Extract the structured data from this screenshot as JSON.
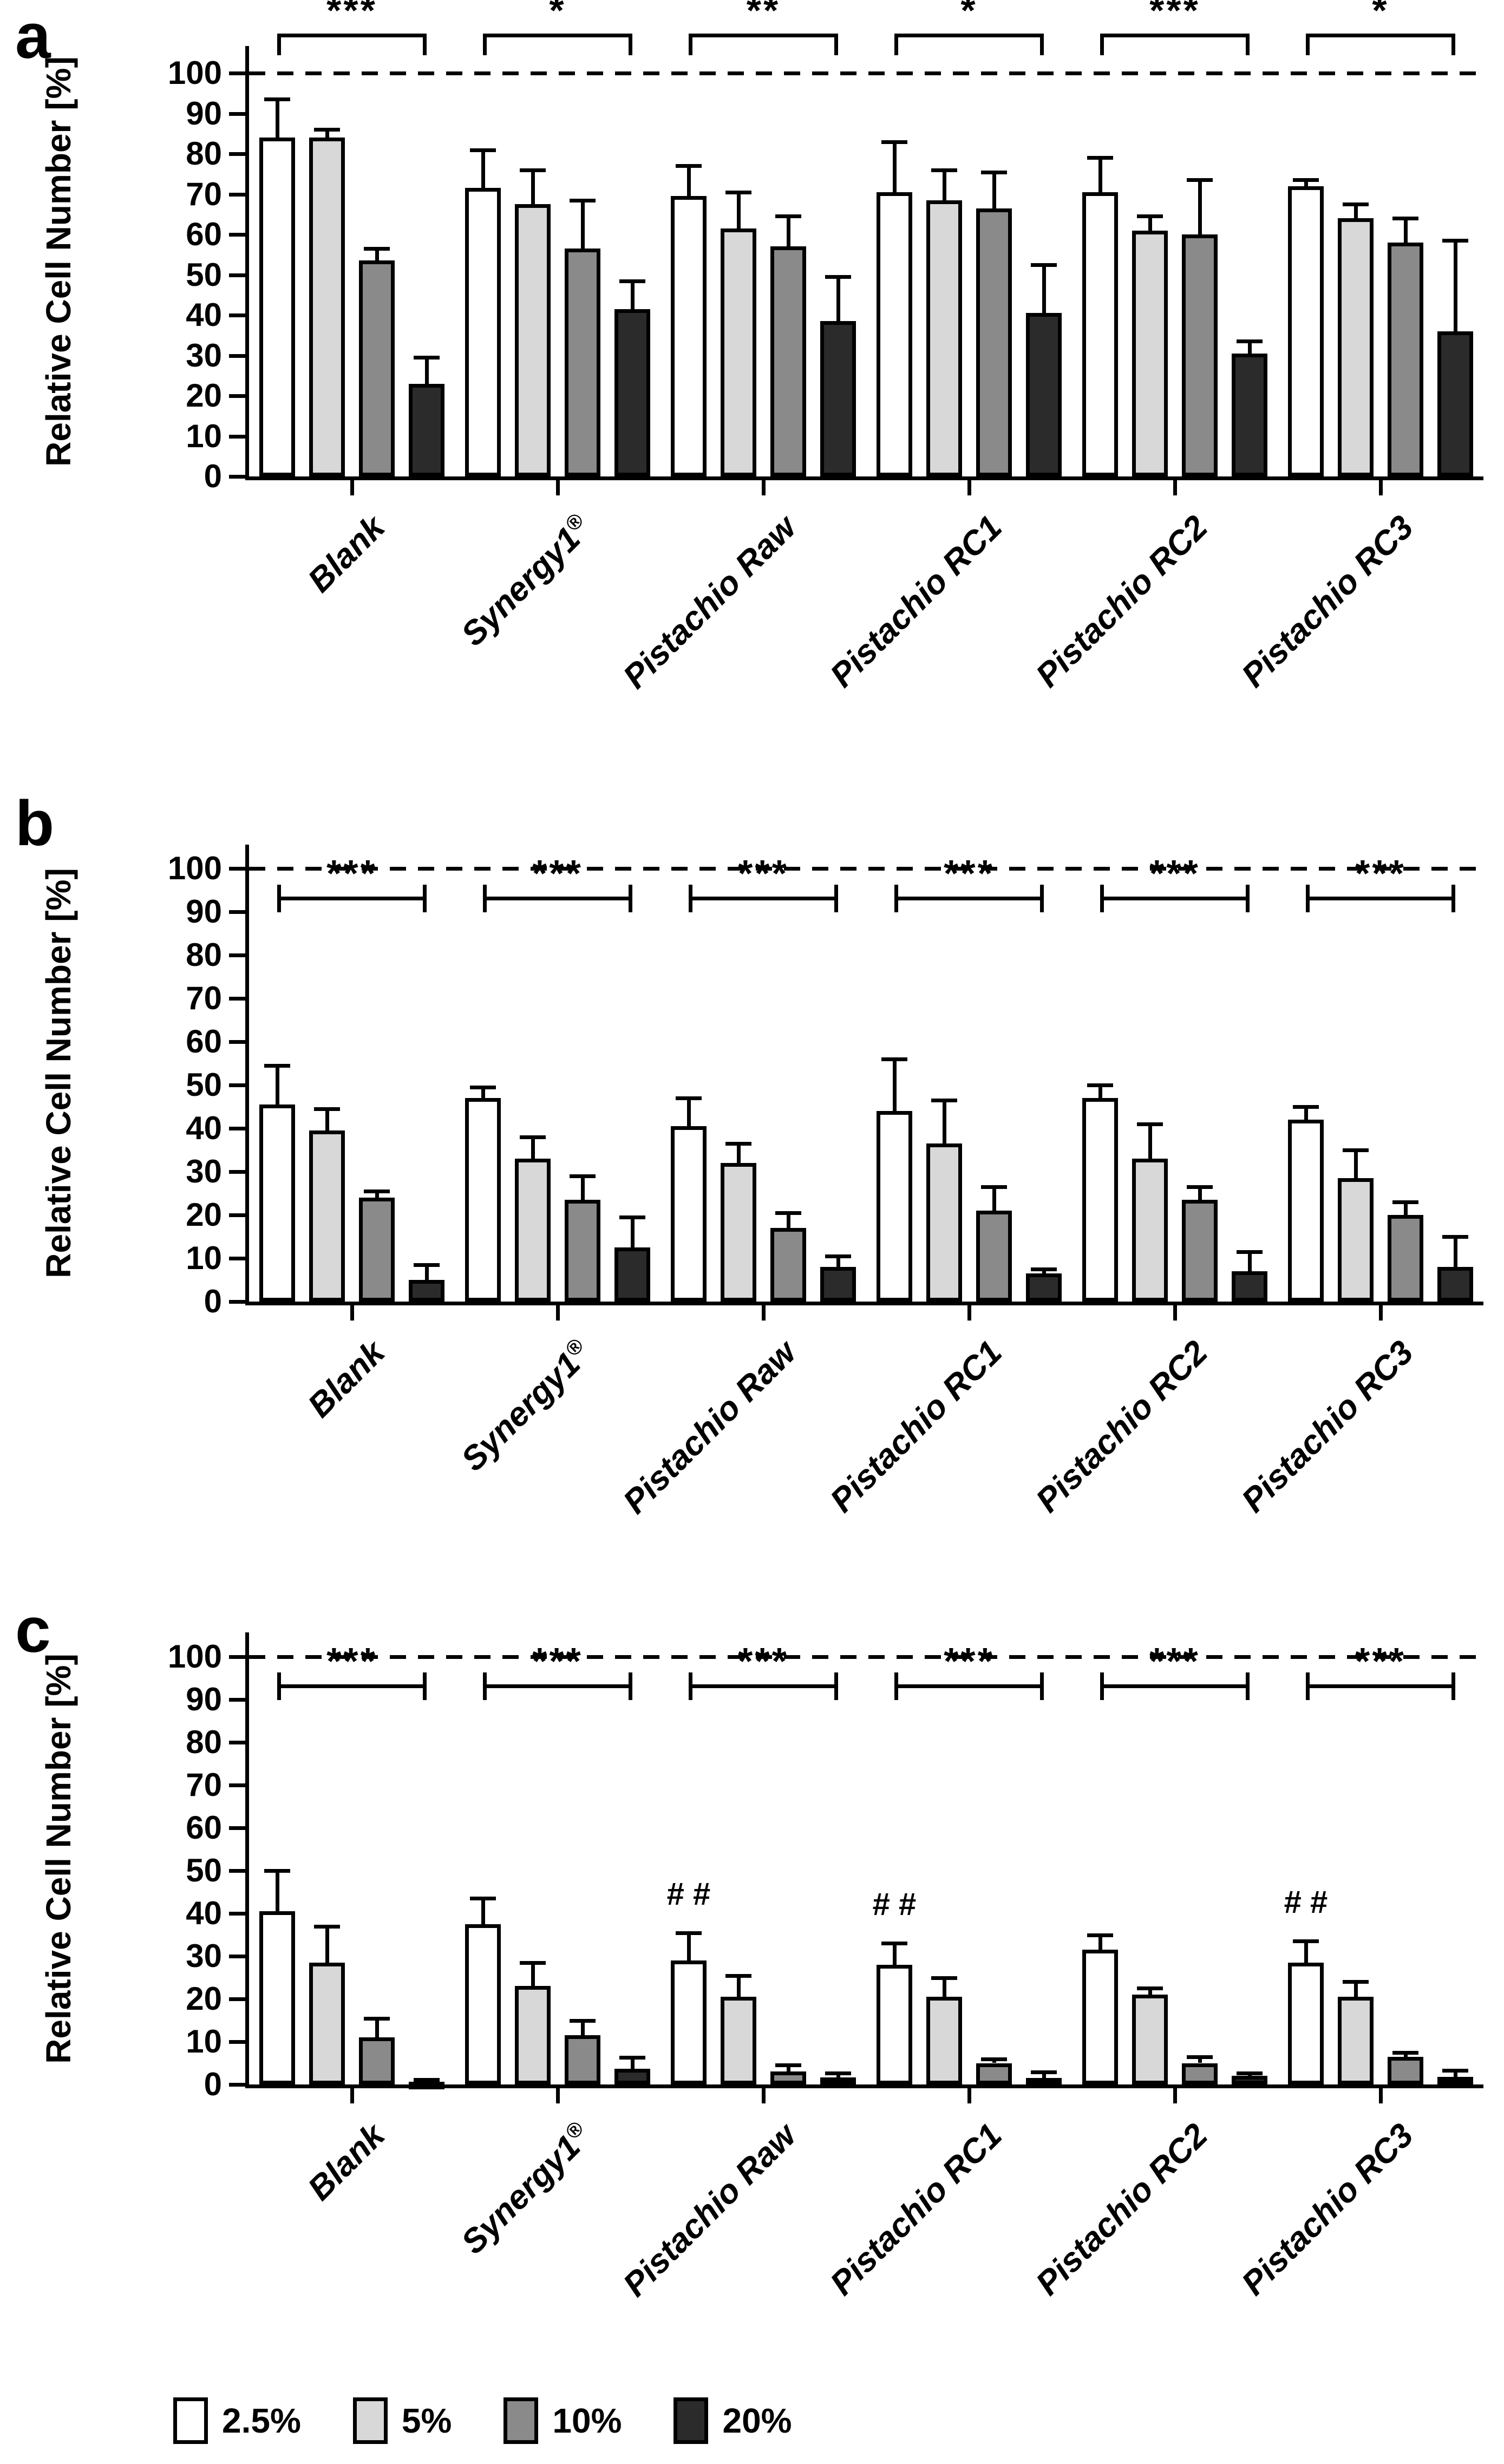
{
  "figure": {
    "ylabel": "Relative Cell Number [%]",
    "panel_letters": [
      "a",
      "b",
      "c"
    ],
    "hash_symbol": "# #",
    "legend": [
      {
        "label": "2.5%",
        "color": "#ffffff"
      },
      {
        "label": "5%",
        "color": "#d8d8d8"
      },
      {
        "label": "10%",
        "color": "#8a8a8a"
      },
      {
        "label": "20%",
        "color": "#2b2b2b"
      }
    ]
  },
  "chart_data": [
    {
      "type": "bar",
      "panel": "a",
      "title": "",
      "xlabel": "",
      "ylabel": "Relative Cell Number [%]",
      "ylim": [
        0,
        110
      ],
      "yticks": [
        0,
        10,
        20,
        30,
        40,
        50,
        60,
        70,
        80,
        90,
        100
      ],
      "reference_line": 100,
      "grid": false,
      "legend_position": "bottom",
      "categories": [
        "Blank",
        "Synergy1®",
        "Pistachio Raw",
        "Pistachio RC1",
        "Pistachio RC2",
        "Pistachio RC3"
      ],
      "series": [
        {
          "name": "2.5%",
          "color": "#ffffff",
          "values": [
            84,
            71.5,
            69.5,
            70.5,
            70.5,
            72
          ],
          "errors": [
            9.5,
            9.5,
            7.5,
            12.5,
            8.5,
            1.5
          ]
        },
        {
          "name": "5%",
          "color": "#d8d8d8",
          "values": [
            84,
            67.5,
            61.5,
            68.5,
            61,
            64
          ],
          "errors": [
            2,
            8.5,
            9,
            7.5,
            3.5,
            3.5
          ]
        },
        {
          "name": "10%",
          "color": "#8a8a8a",
          "values": [
            53.5,
            56.5,
            57,
            66.5,
            60,
            58
          ],
          "errors": [
            3,
            12,
            7.5,
            9,
            13.5,
            6
          ]
        },
        {
          "name": "20%",
          "color": "#2b2b2b",
          "values": [
            23,
            41.5,
            38.5,
            40.5,
            30.5,
            36
          ],
          "errors": [
            6.5,
            7,
            11,
            12,
            3,
            22.5
          ]
        }
      ],
      "significance": [
        "***",
        "*",
        "**",
        "*",
        "***",
        "*"
      ],
      "significance_position": "above_reference",
      "hash_annotations": []
    },
    {
      "type": "bar",
      "panel": "b",
      "title": "",
      "xlabel": "",
      "ylabel": "Relative Cell Number [%]",
      "ylim": [
        0,
        110
      ],
      "yticks": [
        0,
        10,
        20,
        30,
        40,
        50,
        60,
        70,
        80,
        90,
        100
      ],
      "reference_line": 100,
      "grid": false,
      "legend_position": "bottom",
      "categories": [
        "Blank",
        "Synergy1®",
        "Pistachio Raw",
        "Pistachio RC1",
        "Pistachio RC2",
        "Pistachio RC3"
      ],
      "series": [
        {
          "name": "2.5%",
          "color": "#ffffff",
          "values": [
            45.5,
            47,
            40.5,
            44,
            47,
            42
          ],
          "errors": [
            9,
            2.5,
            6.5,
            12,
            3,
            3
          ]
        },
        {
          "name": "5%",
          "color": "#d8d8d8",
          "values": [
            39.5,
            33,
            32,
            36.5,
            33,
            28.5
          ],
          "errors": [
            5,
            5,
            4.5,
            10,
            8,
            6.5
          ]
        },
        {
          "name": "10%",
          "color": "#8a8a8a",
          "values": [
            24,
            23.5,
            17,
            21,
            23.5,
            20
          ],
          "errors": [
            1.5,
            5.5,
            3.5,
            5.5,
            3,
            3
          ]
        },
        {
          "name": "20%",
          "color": "#2b2b2b",
          "values": [
            5,
            12.5,
            8,
            6.5,
            7,
            8
          ],
          "errors": [
            3.5,
            7,
            2.5,
            1,
            4.5,
            7
          ]
        }
      ],
      "significance": [
        "***",
        "***",
        "***",
        "***",
        "***",
        "***"
      ],
      "significance_position": "below_reference",
      "hash_annotations": []
    },
    {
      "type": "bar",
      "panel": "c",
      "title": "",
      "xlabel": "",
      "ylabel": "Relative Cell Number [%]",
      "ylim": [
        0,
        110
      ],
      "yticks": [
        0,
        10,
        20,
        30,
        40,
        50,
        60,
        70,
        80,
        90,
        100
      ],
      "reference_line": 100,
      "grid": false,
      "legend_position": "bottom",
      "categories": [
        "Blank",
        "Synergy1®",
        "Pistachio Raw",
        "Pistachio RC1",
        "Pistachio RC2",
        "Pistachio RC3"
      ],
      "series": [
        {
          "name": "2.5%",
          "color": "#ffffff",
          "values": [
            40.5,
            37.5,
            29,
            28,
            31.5,
            28.5
          ],
          "errors": [
            9.5,
            6,
            6.5,
            5,
            3.5,
            5
          ]
        },
        {
          "name": "5%",
          "color": "#d8d8d8",
          "values": [
            28.5,
            23,
            20.5,
            20.5,
            21,
            20.5
          ],
          "errors": [
            8.5,
            5.5,
            5,
            4.5,
            1.5,
            3.5
          ]
        },
        {
          "name": "10%",
          "color": "#8a8a8a",
          "values": [
            11,
            11.5,
            3,
            5,
            5,
            6.5
          ],
          "errors": [
            4.5,
            3.5,
            1.5,
            1,
            1.5,
            1
          ]
        },
        {
          "name": "20%",
          "color": "#2b2b2b",
          "values": [
            0.6,
            3.7,
            1.6,
            1.5,
            2,
            1.8
          ],
          "errors": [
            0.6,
            2.6,
            1,
            1.4,
            0.7,
            1.5
          ]
        }
      ],
      "significance": [
        "***",
        "***",
        "***",
        "***",
        "***",
        "***"
      ],
      "significance_position": "below_reference",
      "hash_annotations": [
        "Pistachio Raw",
        "Pistachio RC1",
        "Pistachio RC3"
      ]
    }
  ]
}
